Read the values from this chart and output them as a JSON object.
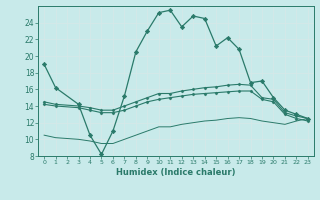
{
  "xlabel": "Humidex (Indice chaleur)",
  "bg_color": "#c8eaea",
  "grid_color": "#d4e8e8",
  "line_color": "#2a7a6a",
  "xlim": [
    -0.5,
    23.5
  ],
  "ylim": [
    8,
    26
  ],
  "x_ticks": [
    0,
    1,
    2,
    3,
    4,
    5,
    6,
    7,
    8,
    9,
    10,
    11,
    12,
    13,
    14,
    15,
    16,
    17,
    18,
    19,
    20,
    21,
    22,
    23
  ],
  "y_ticks": [
    8,
    10,
    12,
    14,
    16,
    18,
    20,
    22,
    24
  ],
  "series1_x": [
    0,
    1,
    3,
    4,
    5,
    6,
    7,
    8,
    9,
    10,
    11,
    12,
    13,
    14,
    15,
    16,
    17,
    18,
    19,
    20,
    21,
    22,
    23
  ],
  "series1_y": [
    19,
    16.2,
    14.2,
    10.5,
    8.2,
    11.0,
    15.2,
    20.5,
    23.0,
    25.2,
    25.5,
    23.5,
    24.8,
    24.5,
    21.2,
    22.2,
    20.8,
    16.8,
    17.0,
    15.0,
    13.5,
    13.0,
    12.5
  ],
  "series2_x": [
    0,
    1,
    3,
    4,
    5,
    6,
    7,
    8,
    9,
    10,
    11,
    12,
    13,
    14,
    15,
    16,
    17,
    18,
    19,
    20,
    21,
    22,
    23
  ],
  "series2_y": [
    14.5,
    14.2,
    14.0,
    13.8,
    13.5,
    13.5,
    14.0,
    14.5,
    15.0,
    15.5,
    15.5,
    15.8,
    16.0,
    16.2,
    16.3,
    16.5,
    16.6,
    16.5,
    15.0,
    14.8,
    13.2,
    12.8,
    12.5
  ],
  "series3_x": [
    0,
    1,
    3,
    4,
    5,
    6,
    7,
    8,
    9,
    10,
    11,
    12,
    13,
    14,
    15,
    16,
    17,
    18,
    19,
    20,
    21,
    22,
    23
  ],
  "series3_y": [
    14.2,
    14.0,
    13.8,
    13.5,
    13.2,
    13.2,
    13.5,
    14.0,
    14.5,
    14.8,
    15.0,
    15.2,
    15.4,
    15.5,
    15.6,
    15.7,
    15.8,
    15.8,
    14.8,
    14.5,
    13.0,
    12.5,
    12.2
  ],
  "series4_x": [
    0,
    1,
    3,
    4,
    5,
    6,
    7,
    8,
    9,
    10,
    11,
    12,
    13,
    14,
    15,
    16,
    17,
    18,
    19,
    20,
    21,
    22,
    23
  ],
  "series4_y": [
    10.5,
    10.2,
    10.0,
    9.8,
    9.5,
    9.5,
    10.0,
    10.5,
    11.0,
    11.5,
    11.5,
    11.8,
    12.0,
    12.2,
    12.3,
    12.5,
    12.6,
    12.5,
    12.2,
    12.0,
    11.8,
    12.2,
    12.5
  ]
}
